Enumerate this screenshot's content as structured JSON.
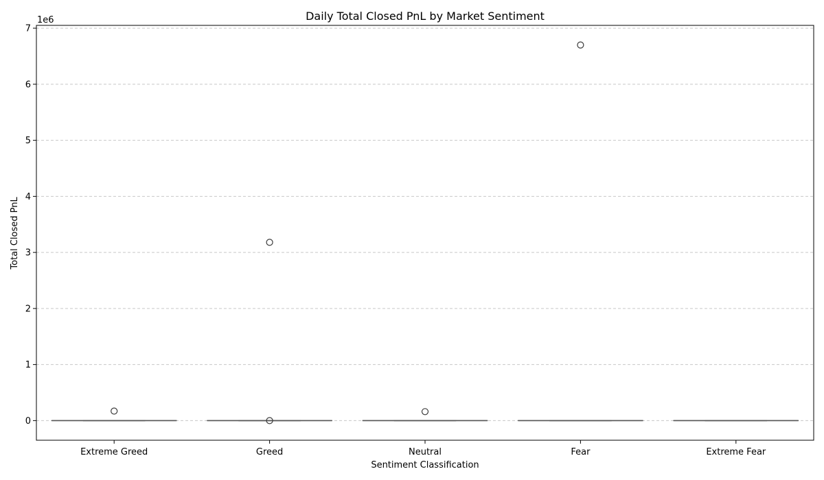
{
  "chart_data": {
    "type": "box",
    "title": "Daily Total Closed PnL by Market Sentiment",
    "xlabel": "Sentiment Classification",
    "ylabel": "Total Closed PnL",
    "y_offset_label": "1e6",
    "y_scale": 1000000,
    "ylim": [
      -350000,
      7050000
    ],
    "yticks": [
      0,
      1,
      2,
      3,
      4,
      5,
      6,
      7
    ],
    "grid": "y-dashed",
    "categories": [
      "Extreme Greed",
      "Greed",
      "Neutral",
      "Fear",
      "Extreme Fear"
    ],
    "boxes": [
      {
        "category": "Extreme Greed",
        "whisker_low": 0,
        "q1": 0,
        "median": 0,
        "q3": 0,
        "whisker_high": 0,
        "outliers": [
          170000
        ]
      },
      {
        "category": "Greed",
        "whisker_low": 0,
        "q1": 0,
        "median": 0,
        "q3": 0,
        "whisker_high": 0,
        "outliers": [
          3180000,
          0
        ]
      },
      {
        "category": "Neutral",
        "whisker_low": 0,
        "q1": 0,
        "median": 0,
        "q3": 0,
        "whisker_high": 0,
        "outliers": [
          160000
        ]
      },
      {
        "category": "Fear",
        "whisker_low": 0,
        "q1": 0,
        "median": 0,
        "q3": 0,
        "whisker_high": 0,
        "outliers": [
          6700000
        ]
      },
      {
        "category": "Extreme Fear",
        "whisker_low": 0,
        "q1": 0,
        "median": 0,
        "q3": 0,
        "whisker_high": 0,
        "outliers": []
      }
    ],
    "colors": {
      "box": "#595959",
      "grid": "#c8c8c8",
      "axis": "#000000"
    }
  }
}
